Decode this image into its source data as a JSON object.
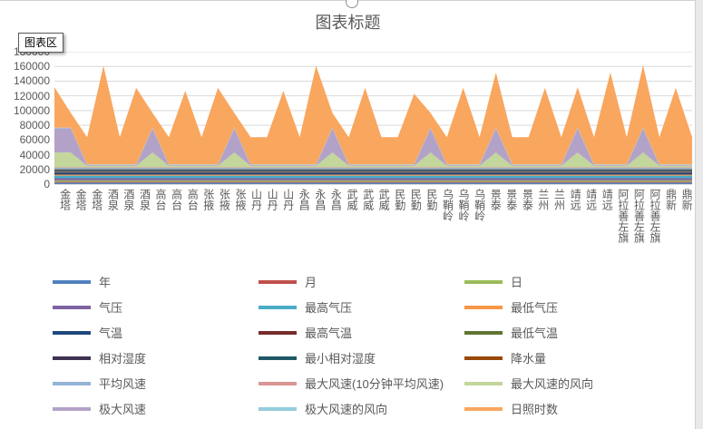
{
  "tooltip": {
    "label": "图表区"
  },
  "chart_data": {
    "type": "area",
    "stacked": true,
    "title": "图表标题",
    "xlabel": "",
    "ylabel": "",
    "ylim": [
      0,
      180000
    ],
    "yticks": [
      0,
      20000,
      40000,
      60000,
      80000,
      100000,
      120000,
      140000,
      160000,
      180000
    ],
    "grid": true,
    "legend_position": "bottom",
    "gridline_color": "#d9d9d9",
    "axis_text_color": "#595959",
    "categories": [
      "金塔",
      "金塔",
      "金塔",
      "酒泉",
      "酒泉",
      "酒泉",
      "高台",
      "高台",
      "高台",
      "张掖",
      "张掖",
      "张掖",
      "山丹",
      "山丹",
      "山丹",
      "永昌",
      "永昌",
      "永昌",
      "武威",
      "武威",
      "武威",
      "民勤",
      "民勤",
      "民勤",
      "乌鞘岭",
      "乌鞘岭",
      "乌鞘岭",
      "景泰",
      "景泰",
      "景泰",
      "兰州",
      "兰州",
      "靖远",
      "靖远",
      "靖远",
      "阿拉善左旗",
      "阿拉善左旗",
      "阿拉善左旗",
      "鼎新",
      "鼎新"
    ],
    "series": [
      {
        "name": "年",
        "color": "#4F81BD",
        "values": 2016
      },
      {
        "name": "月",
        "color": "#C0504D",
        "values": 1200
      },
      {
        "name": "日",
        "color": "#9BBB59",
        "values": 1800
      },
      {
        "name": "气压",
        "color": "#8064A2",
        "values": 3000
      },
      {
        "name": "最高气压",
        "color": "#4BACC6",
        "values": 3500
      },
      {
        "name": "最低气压",
        "color": "#F79646",
        "values": 1500
      },
      {
        "name": "气温",
        "color": "#1F497D",
        "values": 2500
      },
      {
        "name": "最高气温",
        "color": "#772C2A",
        "values": 800
      },
      {
        "name": "最低气温",
        "color": "#5F7530",
        "values": 700
      },
      {
        "name": "相对湿度",
        "color": "#3F3151",
        "values": 1200
      },
      {
        "name": "最小相对湿度",
        "color": "#205867",
        "values": 1300
      },
      {
        "name": "降水量",
        "color": "#984807",
        "values": 700
      },
      {
        "name": "平均风速",
        "color": "#95B3D7",
        "values": 2000
      },
      {
        "name": "最大风速(10分钟平均风速)",
        "color": "#D99694",
        "values": 800
      },
      {
        "name": "最大风速的风向",
        "color": "#C3D69B",
        "values": [
          20000,
          20000,
          2000,
          2000,
          2000,
          2000,
          20000,
          2000,
          2000,
          2000,
          2000,
          20000,
          2000,
          2000,
          2000,
          2000,
          2000,
          20000,
          2000,
          2000,
          2000,
          2000,
          2000,
          20000,
          2000,
          2000,
          2000,
          20000,
          2000,
          2000,
          2000,
          2000,
          20000,
          2000,
          2000,
          2000,
          20000,
          2000,
          2000,
          2000
        ]
      },
      {
        "name": "极大风速",
        "color": "#B3A2C7",
        "values": [
          33000,
          33000,
          1000,
          1000,
          1000,
          1000,
          33000,
          1000,
          1000,
          1000,
          1000,
          33000,
          1000,
          1000,
          1000,
          1000,
          1000,
          33000,
          1000,
          1000,
          1000,
          1000,
          1000,
          33000,
          1000,
          1000,
          1000,
          33000,
          1000,
          1000,
          1000,
          1000,
          33000,
          1000,
          1000,
          1000,
          33000,
          1000,
          1000,
          1000
        ]
      },
      {
        "name": "极大风速的风向",
        "color": "#93CDDD",
        "values": 800
      },
      {
        "name": "日照时数",
        "color": "#F9A65F",
        "values": [
          55000,
          20000,
          37000,
          134000,
          37000,
          104000,
          20000,
          37000,
          100000,
          37000,
          104000,
          20000,
          37000,
          37000,
          100000,
          37000,
          134000,
          20000,
          37000,
          104000,
          37000,
          37000,
          96000,
          20000,
          37000,
          104000,
          37000,
          75000,
          37000,
          37000,
          104000,
          37000,
          55000,
          37000,
          125000,
          37000,
          85000,
          37000,
          104000,
          37000
        ]
      }
    ]
  }
}
